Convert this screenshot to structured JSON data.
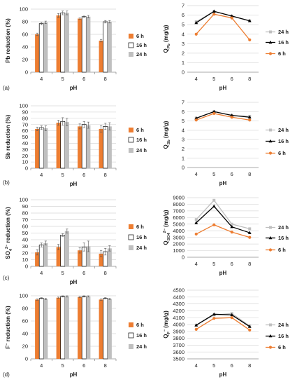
{
  "colors": {
    "6 h": "#ED7D31",
    "16 h": "#000000",
    "24 h": "#BFBFBF",
    "grid": "#D9D9D9",
    "axis": "#8C8C8C"
  },
  "chart_data": [
    {
      "id": "a-bar",
      "type": "bar",
      "panel_label": "(a)",
      "categories": [
        "4",
        "5",
        "6",
        "8"
      ],
      "xlabel": "pH",
      "ylabel": "Pb reduction (%)",
      "ylim": [
        0,
        100
      ],
      "yticks": [
        0,
        20,
        40,
        60,
        80,
        100
      ],
      "grid": true,
      "legend": "right",
      "series": [
        {
          "name": "6 h",
          "values": [
            60,
            90,
            85,
            50
          ],
          "errors": [
            2,
            3,
            1,
            2
          ]
        },
        {
          "name": "16 h",
          "values": [
            77,
            94,
            88,
            80
          ],
          "errors": [
            2,
            3,
            1,
            2
          ]
        },
        {
          "name": "24 h",
          "values": [
            79,
            94,
            88,
            80
          ],
          "errors": [
            2,
            3,
            2,
            2
          ]
        }
      ]
    },
    {
      "id": "a-line",
      "type": "line",
      "categories": [
        "4",
        "5",
        "6",
        "8"
      ],
      "xlabel": "pH",
      "ylabel": "Q",
      "ylabel_sub": "Pb",
      "ylabel_unit": " (mg/g)",
      "ylim": [
        0,
        7
      ],
      "yticks": [
        0,
        1,
        2,
        3,
        4,
        5,
        6,
        7
      ],
      "grid": true,
      "legend": "right",
      "series": [
        {
          "name": "24 h",
          "values": [
            5.3,
            6.4,
            5.9,
            5.4
          ]
        },
        {
          "name": "16 h",
          "values": [
            5.2,
            6.4,
            5.9,
            5.4
          ]
        },
        {
          "name": "6 h",
          "values": [
            4.0,
            6.1,
            5.7,
            3.4
          ]
        }
      ]
    },
    {
      "id": "b-bar",
      "type": "bar",
      "panel_label": "(b)",
      "categories": [
        "4",
        "5",
        "6",
        "8"
      ],
      "xlabel": "pH",
      "ylabel": "Sb reduction (%)",
      "ylim": [
        0,
        100
      ],
      "yticks": [
        0,
        10,
        20,
        30,
        40,
        50,
        60,
        70,
        80,
        90,
        100
      ],
      "grid": true,
      "legend": "right",
      "series": [
        {
          "name": "6 h",
          "values": [
            63,
            73,
            67,
            63
          ],
          "errors": [
            3,
            4,
            4,
            5
          ]
        },
        {
          "name": "16 h",
          "values": [
            65,
            75,
            70,
            67
          ],
          "errors": [
            3,
            6,
            5,
            5
          ]
        },
        {
          "name": "24 h",
          "values": [
            64,
            74,
            69,
            67
          ],
          "errors": [
            4,
            6,
            5,
            6
          ]
        }
      ]
    },
    {
      "id": "b-line",
      "type": "line",
      "categories": [
        "4",
        "5",
        "6",
        "8"
      ],
      "xlabel": "pH",
      "ylabel": "Q",
      "ylabel_sub": "Sb",
      "ylabel_unit": " (mg/g)",
      "ylim": [
        0,
        7
      ],
      "yticks": [
        0,
        1,
        2,
        3,
        4,
        5,
        6,
        7
      ],
      "grid": true,
      "legend": "right",
      "series": [
        {
          "name": "24 h",
          "values": [
            5.3,
            6.0,
            5.6,
            5.5
          ]
        },
        {
          "name": "16 h",
          "values": [
            5.3,
            6.0,
            5.6,
            5.4
          ]
        },
        {
          "name": "6 h",
          "values": [
            5.1,
            5.8,
            5.4,
            5.1
          ]
        }
      ]
    },
    {
      "id": "c-bar",
      "type": "bar",
      "panel_label": "(c)",
      "categories": [
        "4",
        "5",
        "6",
        "8"
      ],
      "xlabel": "pH",
      "ylabel": "SO",
      "ylabel_sub": "4",
      "ylabel_sup": "2−",
      "ylabel_unit": " reduction (%)",
      "ylim": [
        0,
        100
      ],
      "yticks": [
        0,
        10,
        20,
        30,
        40,
        50,
        60,
        70,
        80,
        90,
        100
      ],
      "grid": true,
      "legend": "right",
      "series": [
        {
          "name": "6 h",
          "values": [
            21,
            29,
            24,
            19
          ],
          "errors": [
            4,
            4,
            4,
            5
          ]
        },
        {
          "name": "16 h",
          "values": [
            32,
            47,
            29,
            22
          ],
          "errors": [
            3,
            2,
            6,
            5
          ]
        },
        {
          "name": "24 h",
          "values": [
            35,
            53,
            30,
            27
          ],
          "errors": [
            3,
            3,
            8,
            4
          ]
        }
      ]
    },
    {
      "id": "c-line",
      "type": "line",
      "categories": [
        "4",
        "5",
        "6",
        "8"
      ],
      "xlabel": "pH",
      "ylabel": "Q",
      "ylabel_sub": "SO4",
      "ylabel_sup": "2−",
      "ylabel_unit": " (mg/g)",
      "ylim": [
        0,
        9000
      ],
      "yticks": [
        0,
        1000,
        2000,
        3000,
        4000,
        5000,
        6000,
        7000,
        8000,
        9000
      ],
      "grid": true,
      "legend": "right",
      "series": [
        {
          "name": "24 h",
          "values": [
            5700,
            8600,
            5000,
            4300
          ]
        },
        {
          "name": "16 h",
          "values": [
            5200,
            7700,
            4600,
            3700
          ]
        },
        {
          "name": "6 h",
          "values": [
            3500,
            4900,
            3800,
            3000
          ]
        }
      ]
    },
    {
      "id": "d-bar",
      "type": "bar",
      "panel_label": "(d)",
      "categories": [
        "4",
        "5",
        "6",
        "8"
      ],
      "xlabel": "pH",
      "ylabel": "F",
      "ylabel_sup": "−",
      "ylabel_unit": " reduction (%)",
      "ylim": [
        0,
        100
      ],
      "yticks": [
        0,
        20,
        40,
        60,
        80,
        100
      ],
      "grid": true,
      "legend": "right",
      "series": [
        {
          "name": "6 h",
          "values": [
            94,
            97,
            98,
            94
          ],
          "errors": [
            1,
            1,
            1,
            1
          ]
        },
        {
          "name": "16 h",
          "values": [
            96,
            99,
            99,
            96
          ],
          "errors": [
            1,
            1,
            1,
            1
          ]
        },
        {
          "name": "24 h",
          "values": [
            95,
            99,
            99,
            95
          ],
          "errors": [
            1,
            1,
            1,
            1
          ]
        }
      ]
    },
    {
      "id": "d-line",
      "type": "line",
      "categories": [
        "4",
        "5",
        "6",
        "8"
      ],
      "xlabel": "pH",
      "ylabel": "Q",
      "ylabel_sub": "F",
      "ylabel_sup": "−",
      "ylabel_unit": " (mg/g)",
      "ylim": [
        3500,
        4500
      ],
      "yticks": [
        3500,
        3600,
        3700,
        3800,
        3900,
        4000,
        4100,
        4200,
        4300,
        4400,
        4500
      ],
      "grid": true,
      "legend": "right",
      "series": [
        {
          "name": "24 h",
          "values": [
            3990,
            4140,
            4160,
            3980
          ]
        },
        {
          "name": "16 h",
          "values": [
            3990,
            4150,
            4140,
            3970
          ]
        },
        {
          "name": "6 h",
          "values": [
            3930,
            4090,
            4100,
            3920
          ]
        }
      ]
    }
  ]
}
